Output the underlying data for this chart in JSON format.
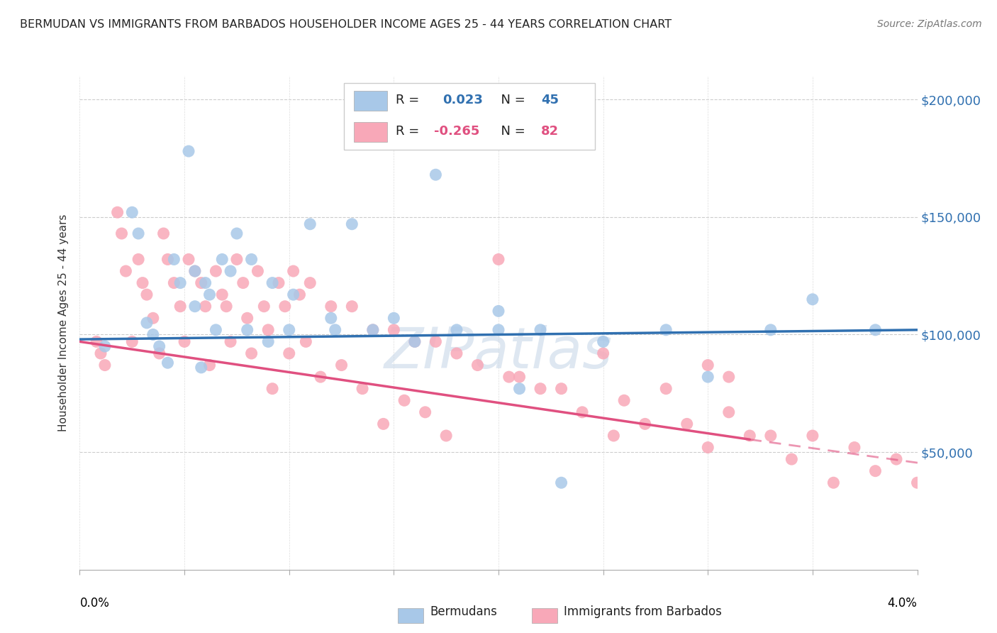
{
  "title": "BERMUDAN VS IMMIGRANTS FROM BARBADOS HOUSEHOLDER INCOME AGES 25 - 44 YEARS CORRELATION CHART",
  "source": "Source: ZipAtlas.com",
  "ylabel": "Householder Income Ages 25 - 44 years",
  "xmin": 0.0,
  "xmax": 0.04,
  "ymin": 0,
  "ymax": 210000,
  "yticks": [
    50000,
    100000,
    150000,
    200000
  ],
  "ytick_labels": [
    "$50,000",
    "$100,000",
    "$150,000",
    "$200,000"
  ],
  "watermark": "ZIPatlas",
  "blue_color": "#a8c8e8",
  "pink_color": "#f8a8b8",
  "blue_line_color": "#3070b0",
  "pink_line_color": "#e05080",
  "blue_scatter_x": [
    0.0012,
    0.0025,
    0.0028,
    0.0032,
    0.0035,
    0.0038,
    0.0042,
    0.0045,
    0.0048,
    0.0052,
    0.0055,
    0.0055,
    0.0058,
    0.006,
    0.0062,
    0.0065,
    0.0068,
    0.0072,
    0.0075,
    0.008,
    0.0082,
    0.009,
    0.0092,
    0.01,
    0.0102,
    0.011,
    0.012,
    0.0122,
    0.013,
    0.014,
    0.015,
    0.016,
    0.017,
    0.018,
    0.02,
    0.021,
    0.022,
    0.023,
    0.025,
    0.028,
    0.03,
    0.033,
    0.035,
    0.038,
    0.02
  ],
  "blue_scatter_y": [
    95000,
    152000,
    143000,
    105000,
    100000,
    95000,
    88000,
    132000,
    122000,
    178000,
    127000,
    112000,
    86000,
    122000,
    117000,
    102000,
    132000,
    127000,
    143000,
    102000,
    132000,
    97000,
    122000,
    102000,
    117000,
    147000,
    107000,
    102000,
    147000,
    102000,
    107000,
    97000,
    168000,
    102000,
    102000,
    77000,
    102000,
    37000,
    97000,
    102000,
    82000,
    102000,
    115000,
    102000,
    110000
  ],
  "pink_scatter_x": [
    0.0008,
    0.001,
    0.0012,
    0.0018,
    0.002,
    0.0022,
    0.0025,
    0.0028,
    0.003,
    0.0032,
    0.0035,
    0.0038,
    0.004,
    0.0042,
    0.0045,
    0.0048,
    0.005,
    0.0052,
    0.0055,
    0.0058,
    0.006,
    0.0062,
    0.0065,
    0.0068,
    0.007,
    0.0072,
    0.0075,
    0.0078,
    0.008,
    0.0082,
    0.0085,
    0.0088,
    0.009,
    0.0092,
    0.0095,
    0.0098,
    0.01,
    0.0102,
    0.0105,
    0.0108,
    0.011,
    0.0115,
    0.012,
    0.0125,
    0.013,
    0.0135,
    0.014,
    0.0145,
    0.015,
    0.0155,
    0.016,
    0.0165,
    0.017,
    0.0175,
    0.018,
    0.019,
    0.02,
    0.0205,
    0.021,
    0.022,
    0.023,
    0.024,
    0.025,
    0.0255,
    0.026,
    0.027,
    0.028,
    0.029,
    0.03,
    0.031,
    0.032,
    0.033,
    0.034,
    0.035,
    0.036,
    0.037,
    0.038,
    0.039,
    0.04,
    0.03,
    0.031
  ],
  "pink_scatter_y": [
    97000,
    92000,
    87000,
    152000,
    143000,
    127000,
    97000,
    132000,
    122000,
    117000,
    107000,
    92000,
    143000,
    132000,
    122000,
    112000,
    97000,
    132000,
    127000,
    122000,
    112000,
    87000,
    127000,
    117000,
    112000,
    97000,
    132000,
    122000,
    107000,
    92000,
    127000,
    112000,
    102000,
    77000,
    122000,
    112000,
    92000,
    127000,
    117000,
    97000,
    122000,
    82000,
    112000,
    87000,
    112000,
    77000,
    102000,
    62000,
    102000,
    72000,
    97000,
    67000,
    97000,
    57000,
    92000,
    87000,
    132000,
    82000,
    82000,
    77000,
    77000,
    67000,
    92000,
    57000,
    72000,
    62000,
    77000,
    62000,
    52000,
    67000,
    57000,
    57000,
    47000,
    57000,
    37000,
    52000,
    42000,
    47000,
    37000,
    87000,
    82000
  ]
}
